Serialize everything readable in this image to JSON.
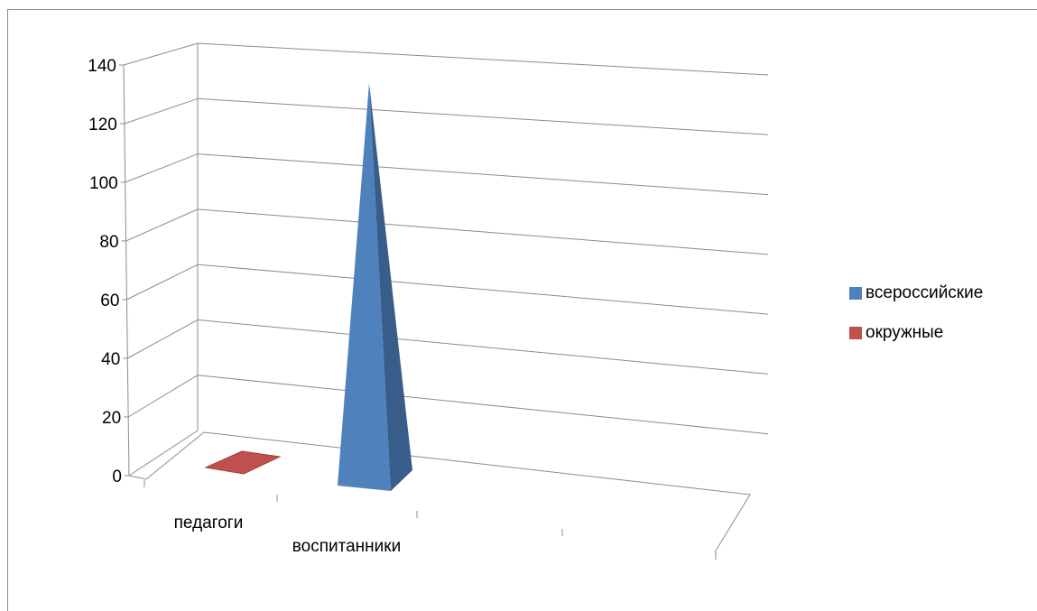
{
  "chart_data": {
    "type": "bar",
    "style": "3d-pyramid",
    "categories": [
      "педагоги",
      "воспитанники"
    ],
    "series": [
      {
        "name": "всероссийские",
        "values": [
          0,
          132
        ],
        "color": "#4f81bd"
      },
      {
        "name": "окружные",
        "values": [
          1,
          0
        ],
        "color": "#c0504d"
      }
    ],
    "yticks": [
      "0",
      "20",
      "40",
      "60",
      "80",
      "100",
      "120",
      "140"
    ],
    "ylim": [
      0,
      140
    ],
    "grid": true,
    "legend": "right"
  }
}
